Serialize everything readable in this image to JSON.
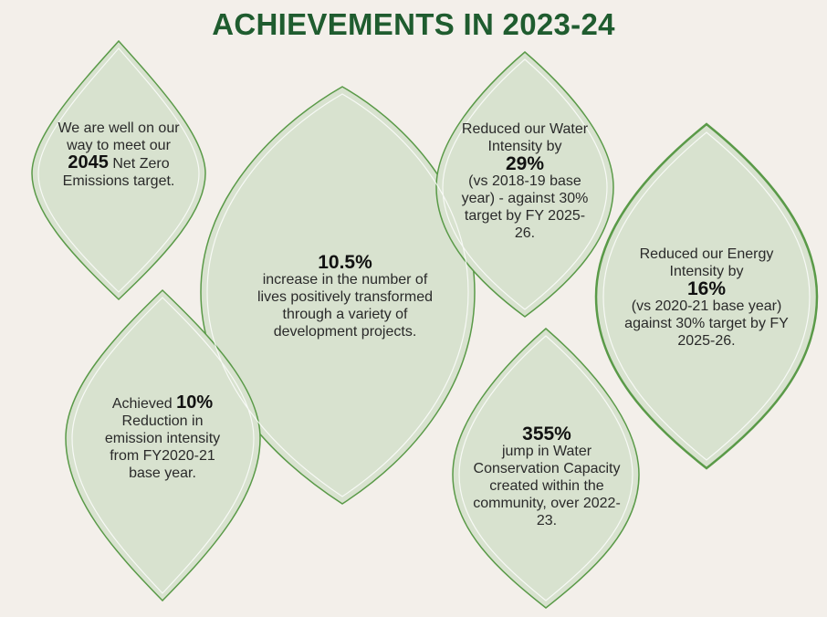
{
  "title": "ACHIEVEMENTS IN 2023-24",
  "colors": {
    "title": "#1f5c2f",
    "leaf_fill": "#d8e2cf",
    "leaf_stroke": "#5a9a48",
    "background": "#f3efea"
  },
  "cards": {
    "net_zero": {
      "pre": "We are well on our way to meet our",
      "highlight": "2045",
      "post": "Net Zero Emissions target."
    },
    "lives": {
      "highlight": "10.5%",
      "text": "increase in the number of lives positively transformed through a variety of development projects."
    },
    "water_intensity": {
      "pre": "Reduced our Water Intensity by",
      "highlight": "29%",
      "post": "(vs 2018-19 base year) - against 30% target by FY 2025-26."
    },
    "energy_intensity": {
      "pre": "Reduced our Energy Intensity by",
      "highlight": "16%",
      "post": "(vs 2020-21 base year) against 30% target by FY 2025-26."
    },
    "emission_intensity": {
      "pre": "Achieved",
      "highlight": "10%",
      "post": "Reduction in emission intensity from FY2020-21 base year."
    },
    "water_conservation": {
      "highlight": "355%",
      "text": "jump in Water Conservation Capacity created within the community, over 2022-23."
    }
  }
}
